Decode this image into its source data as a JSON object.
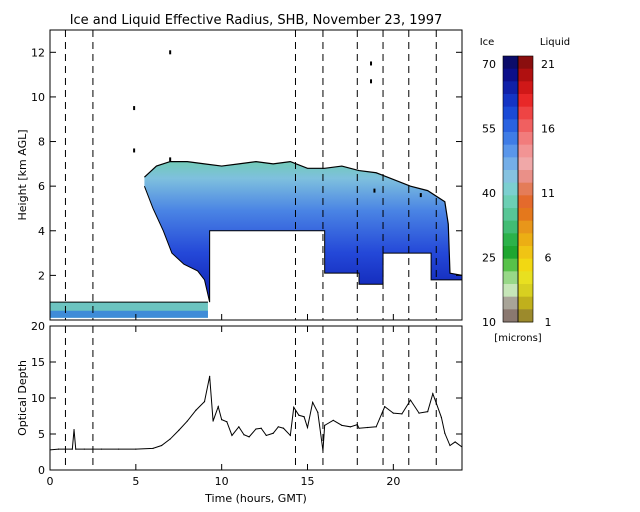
{
  "title": "Ice and Liquid Effective Radius, SHB, November 23, 1997",
  "colorbar": {
    "ice_label": "Ice",
    "liquid_label": "Liquid",
    "ice_ticks": [
      "70",
      "55",
      "40",
      "25",
      "10"
    ],
    "liquid_ticks": [
      "21",
      "16",
      "11",
      "6",
      "1"
    ],
    "units_label": "[microns]",
    "ice_colors": [
      "#0c0c6a",
      "#0d0f8a",
      "#1020a8",
      "#1434c4",
      "#1a4ad6",
      "#2a62e0",
      "#3f7ce6",
      "#5a96ea",
      "#74aee8",
      "#86c2e0",
      "#7ccfd0",
      "#6ccfb4",
      "#58c696",
      "#42bc74",
      "#2cb24a",
      "#1ea630",
      "#58c24a",
      "#98d888",
      "#c6e6b8",
      "#a8a498",
      "#8a7870"
    ],
    "liquid_colors": [
      "#8a0e0e",
      "#b01010",
      "#d01818",
      "#e82828",
      "#ee4444",
      "#f06060",
      "#f27c7c",
      "#f29494",
      "#f0a8a8",
      "#ea9088",
      "#e47c58",
      "#e46a2c",
      "#e4781c",
      "#e8961a",
      "#ecae14",
      "#f0c414",
      "#f2d812",
      "#e8e020",
      "#d8d020",
      "#c0b01c",
      "#9c8a2c"
    ]
  },
  "chart_data": [
    {
      "type": "heatmap",
      "title": "Ice and Liquid Effective Radius, SHB, November 23, 1997",
      "ylabel": "Height [km AGL]",
      "xlim": [
        0,
        24
      ],
      "ylim": [
        0,
        13
      ],
      "yticks": [
        2,
        4,
        6,
        8,
        10,
        12
      ],
      "colorbar_units": "microns",
      "ice_range": [
        10,
        70
      ],
      "liquid_range": [
        1,
        21
      ],
      "dashed_times": [
        0.9,
        2.5,
        14.3,
        15.9,
        17.9,
        19.4,
        20.9,
        22.5
      ],
      "cloud_top": [
        [
          5.5,
          6.4
        ],
        [
          6.2,
          6.9
        ],
        [
          7.0,
          7.1
        ],
        [
          8.0,
          7.1
        ],
        [
          9.0,
          7.0
        ],
        [
          10.0,
          6.9
        ],
        [
          11.0,
          7.0
        ],
        [
          12.0,
          7.1
        ],
        [
          13.0,
          7.0
        ],
        [
          14.0,
          7.1
        ],
        [
          15.0,
          6.8
        ],
        [
          16.0,
          6.8
        ],
        [
          17.0,
          6.9
        ],
        [
          18.0,
          6.7
        ],
        [
          19.0,
          6.6
        ],
        [
          20.0,
          6.3
        ],
        [
          21.0,
          6.0
        ],
        [
          22.0,
          5.8
        ],
        [
          23.0,
          5.3
        ],
        [
          23.2,
          4.3
        ],
        [
          23.3,
          2.1
        ],
        [
          24.0,
          2.0
        ]
      ],
      "cloud_base": [
        [
          5.5,
          6.0
        ],
        [
          6.0,
          5.0
        ],
        [
          6.6,
          4.0
        ],
        [
          7.1,
          3.0
        ],
        [
          7.8,
          2.5
        ],
        [
          8.6,
          2.2
        ],
        [
          9.0,
          1.8
        ],
        [
          9.3,
          0.8
        ],
        [
          9.3,
          4.0
        ],
        [
          16.0,
          4.0
        ],
        [
          16.0,
          2.1
        ],
        [
          18.0,
          2.1
        ],
        [
          18.0,
          1.6
        ],
        [
          19.4,
          1.6
        ],
        [
          19.4,
          3.0
        ],
        [
          22.2,
          3.0
        ],
        [
          22.2,
          1.8
        ],
        [
          24.0,
          1.8
        ]
      ],
      "low_cloud": {
        "top_km": 0.8,
        "base_km": 0.1,
        "t_start": 0,
        "t_end": 9.2
      },
      "sparse_echoes": [
        [
          7.0,
          12.0
        ],
        [
          7.0,
          7.2
        ],
        [
          4.9,
          9.5
        ],
        [
          4.9,
          7.6
        ],
        [
          18.7,
          11.5
        ],
        [
          18.7,
          10.7
        ],
        [
          18.9,
          5.8
        ],
        [
          21.6,
          5.6
        ]
      ]
    },
    {
      "type": "line",
      "ylabel": "Optical Depth",
      "xlabel": "Time (hours, GMT)",
      "xlim": [
        0,
        24
      ],
      "ylim": [
        0,
        20
      ],
      "yticks": [
        0,
        5,
        10,
        15,
        20
      ],
      "xticks": [
        0,
        5,
        10,
        15,
        20
      ],
      "dashed_times": [
        0.9,
        2.5,
        14.3,
        15.9,
        17.9,
        19.4,
        20.9,
        22.5
      ],
      "x": [
        0,
        0.5,
        0.9,
        1.3,
        1.4,
        1.5,
        2.0,
        3.0,
        4.0,
        5.0,
        6.0,
        6.5,
        7.0,
        7.5,
        8.0,
        8.5,
        9.0,
        9.3,
        9.5,
        9.8,
        10.0,
        10.3,
        10.6,
        11.0,
        11.3,
        11.6,
        12.0,
        12.3,
        12.6,
        13.0,
        13.3,
        13.6,
        14.0,
        14.2,
        14.5,
        14.8,
        15.0,
        15.3,
        15.6,
        15.9,
        16.0,
        16.5,
        17.0,
        17.5,
        17.9,
        18.0,
        18.5,
        19.0,
        19.5,
        20.0,
        20.5,
        21.0,
        21.5,
        22.0,
        22.3,
        22.5,
        22.8,
        23.0,
        23.3,
        23.6,
        24.0
      ],
      "y": [
        2.8,
        2.9,
        2.9,
        2.9,
        5.6,
        2.9,
        2.9,
        2.9,
        2.9,
        2.9,
        3.0,
        3.4,
        4.3,
        5.5,
        6.8,
        8.3,
        9.5,
        13.0,
        6.8,
        8.8,
        7.0,
        6.7,
        4.8,
        6.0,
        4.9,
        4.6,
        5.7,
        5.8,
        4.8,
        5.1,
        6.0,
        5.8,
        4.8,
        8.7,
        7.6,
        7.4,
        5.9,
        9.4,
        8.0,
        2.7,
        6.2,
        6.9,
        6.2,
        6.0,
        6.3,
        5.8,
        5.9,
        6.0,
        8.8,
        7.9,
        7.8,
        9.7,
        7.9,
        8.1,
        10.6,
        9.3,
        7.3,
        5.1,
        3.4,
        3.9,
        3.2
      ]
    }
  ]
}
